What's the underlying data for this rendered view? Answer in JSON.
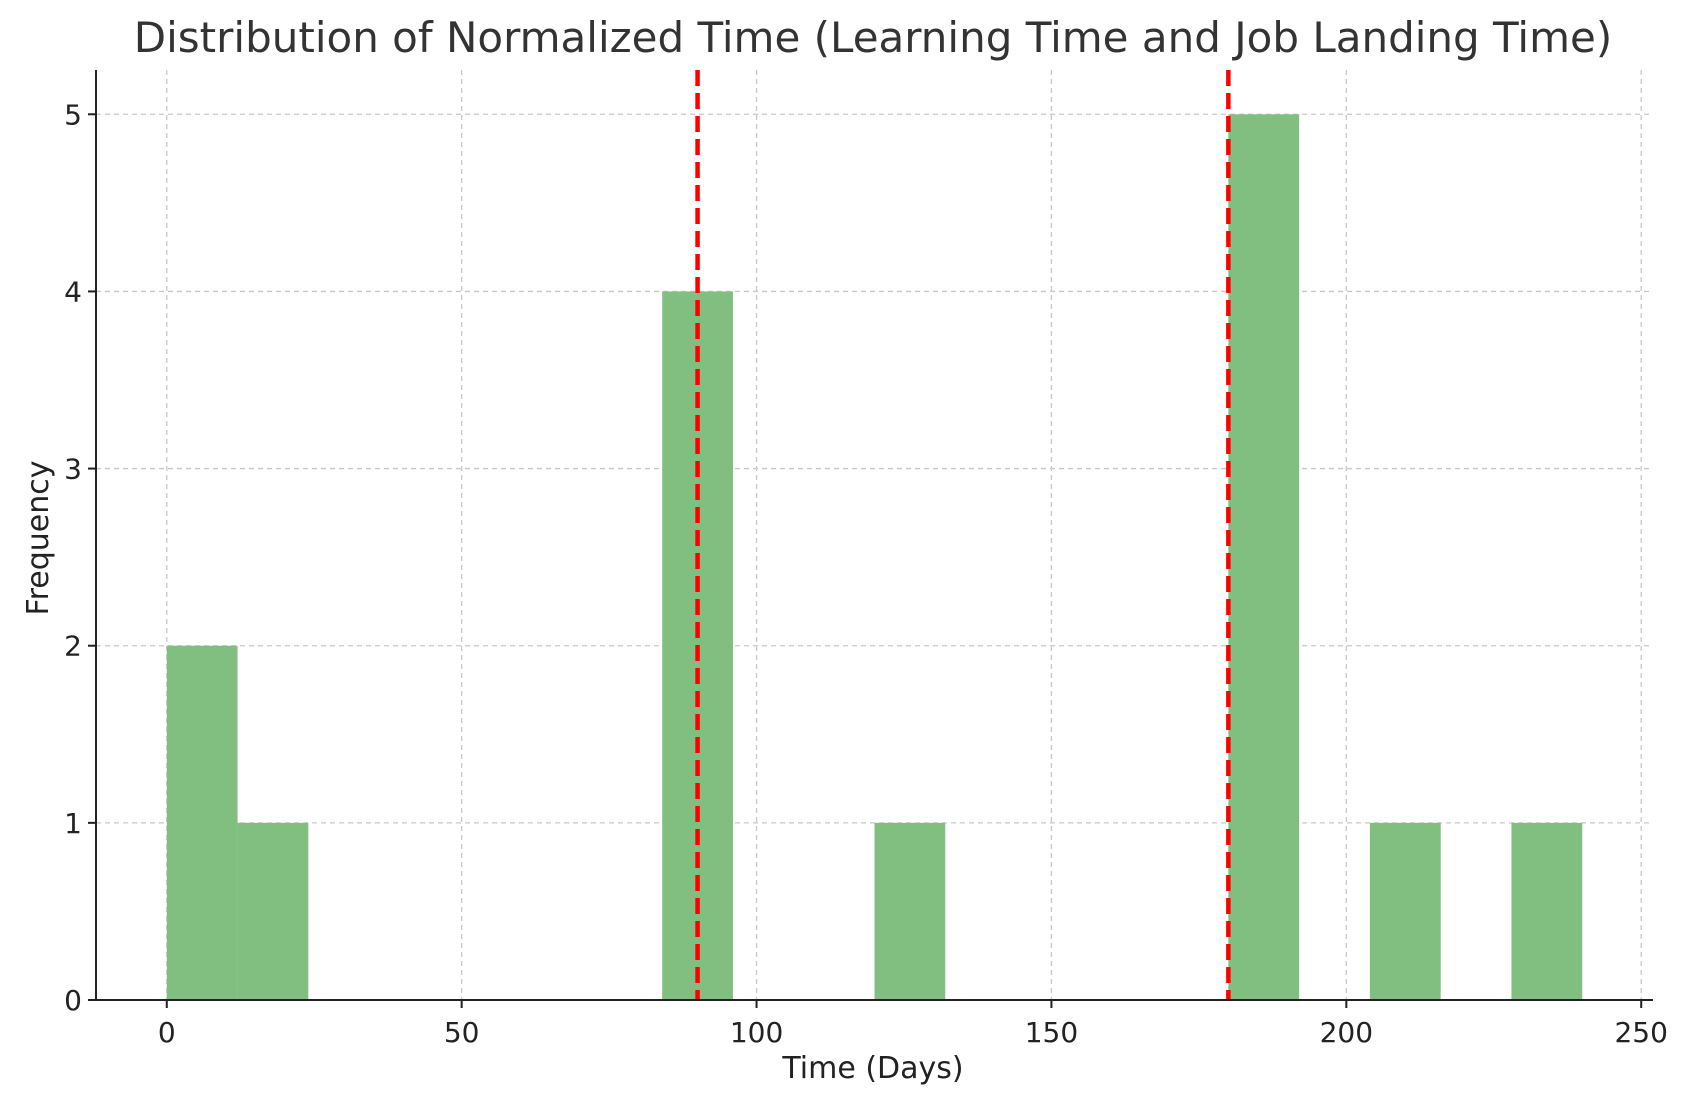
{
  "chart_data": {
    "type": "bar",
    "title": "Distribution of Normalized Time (Learning Time and Job Landing Time)",
    "xlabel": "Time (Days)",
    "ylabel": "Frequency",
    "xlim": [
      -12,
      252
    ],
    "ylim": [
      0,
      5.25
    ],
    "xticks": [
      0,
      50,
      100,
      150,
      200,
      250
    ],
    "yticks": [
      0,
      1,
      2,
      3,
      4,
      5
    ],
    "grid": true,
    "bin_width": 12,
    "bins": [
      {
        "start": 0,
        "end": 12,
        "count": 2
      },
      {
        "start": 12,
        "end": 24,
        "count": 1
      },
      {
        "start": 84,
        "end": 96,
        "count": 4
      },
      {
        "start": 120,
        "end": 132,
        "count": 1
      },
      {
        "start": 180,
        "end": 192,
        "count": 5
      },
      {
        "start": 204,
        "end": 216,
        "count": 1
      },
      {
        "start": 228,
        "end": 240,
        "count": 1
      }
    ],
    "reference_lines": [
      90,
      180
    ],
    "colors": {
      "bar": "#80bf7f",
      "reference_line": "#ff0000",
      "grid": "#c8c8c8",
      "axis": "#222222"
    }
  }
}
